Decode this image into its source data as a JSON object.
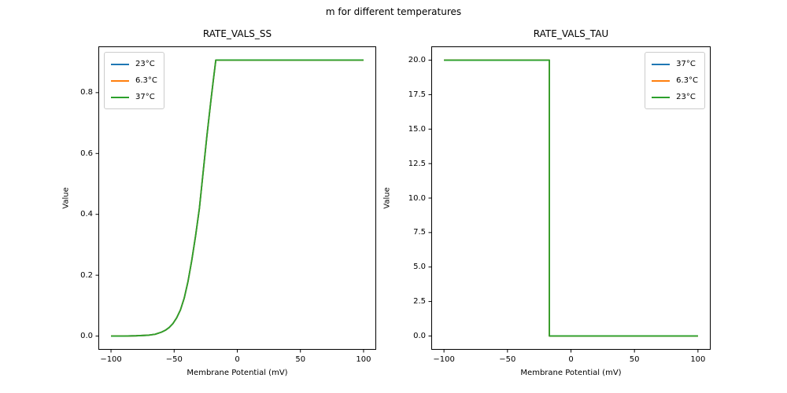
{
  "figure": {
    "suptitle": "m for different temperatures",
    "background_color": "#ffffff",
    "axis_color": "#000000"
  },
  "palette": {
    "blue": "#1f77b4",
    "orange": "#ff7f0e",
    "green": "#2ca02c"
  },
  "chart_data": [
    {
      "type": "line",
      "title": "RATE_VALS_SS",
      "xlabel": "Membrane Potential (mV)",
      "ylabel": "Value",
      "xlim": [
        -110,
        110
      ],
      "ylim": [
        -0.045,
        0.952
      ],
      "xticks": [
        -100,
        -50,
        0,
        50,
        100
      ],
      "xtick_labels": [
        "−100",
        "−50",
        "0",
        "50",
        "100"
      ],
      "yticks": [
        0.0,
        0.2,
        0.4,
        0.6,
        0.8
      ],
      "ytick_labels": [
        "0.0",
        "0.2",
        "0.4",
        "0.6",
        "0.8"
      ],
      "grid": false,
      "legend_position": "upper-left",
      "series": [
        {
          "name": "23°C",
          "color": "#1f77b4"
        },
        {
          "name": "6.3°C",
          "color": "#ff7f0e"
        },
        {
          "name": "37°C",
          "color": "#2ca02c"
        }
      ],
      "series_note": "all three temperature curves coincide exactly; only the last-drawn (37°C, green) is visible",
      "x": [
        -100,
        -90,
        -80,
        -75,
        -70,
        -65,
        -60,
        -57,
        -54,
        -51,
        -48,
        -45,
        -42,
        -39,
        -36,
        -33,
        -30,
        -27,
        -24,
        -21,
        -19,
        -17,
        -10,
        0,
        25,
        50,
        75,
        100
      ],
      "y_shared": [
        0.0,
        0.0,
        0.001,
        0.002,
        0.003,
        0.006,
        0.013,
        0.019,
        0.028,
        0.041,
        0.06,
        0.086,
        0.125,
        0.18,
        0.25,
        0.33,
        0.42,
        0.54,
        0.66,
        0.77,
        0.84,
        0.907,
        0.907,
        0.907,
        0.907,
        0.907,
        0.907,
        0.907
      ]
    },
    {
      "type": "line",
      "title": "RATE_VALS_TAU",
      "xlabel": "Membrane Potential (mV)",
      "ylabel": "Value",
      "xlim": [
        -110,
        110
      ],
      "ylim": [
        -1,
        21
      ],
      "xticks": [
        -100,
        -50,
        0,
        50,
        100
      ],
      "xtick_labels": [
        "−100",
        "−50",
        "0",
        "50",
        "100"
      ],
      "yticks": [
        0.0,
        2.5,
        5.0,
        7.5,
        10.0,
        12.5,
        15.0,
        17.5,
        20.0
      ],
      "ytick_labels": [
        "0.0",
        "2.5",
        "5.0",
        "7.5",
        "10.0",
        "12.5",
        "15.0",
        "17.5",
        "20.0"
      ],
      "grid": false,
      "legend_position": "upper-right",
      "series": [
        {
          "name": "37°C",
          "color": "#1f77b4"
        },
        {
          "name": "6.3°C",
          "color": "#ff7f0e"
        },
        {
          "name": "23°C",
          "color": "#2ca02c"
        }
      ],
      "series_note": "all three temperature curves coincide exactly; only the last-drawn (23°C, green) is visible; step drop from 20 to 0 at about −17 mV",
      "x": [
        -100,
        -75,
        -50,
        -25,
        -17,
        -17,
        0,
        25,
        50,
        75,
        100
      ],
      "y_shared": [
        20,
        20,
        20,
        20,
        20,
        0,
        0,
        0,
        0,
        0,
        0
      ]
    }
  ]
}
